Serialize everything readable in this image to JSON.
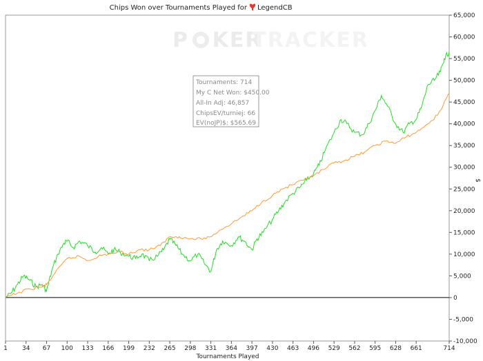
{
  "chart_data": {
    "type": "line",
    "title": "Chips Won over Tournaments Played for",
    "player": "LegendCB",
    "xlabel": "Tournaments Played",
    "ylabel": "$",
    "xlim": [
      1,
      714
    ],
    "ylim": [
      -10000,
      65000
    ],
    "x_ticks": [
      1,
      34,
      67,
      100,
      133,
      166,
      199,
      232,
      265,
      298,
      331,
      364,
      397,
      430,
      463,
      496,
      529,
      562,
      595,
      628,
      661,
      714
    ],
    "y_ticks": [
      -10000,
      -5000,
      0,
      5000,
      10000,
      15000,
      20000,
      25000,
      30000,
      35000,
      40000,
      45000,
      50000,
      55000,
      60000,
      65000
    ],
    "y_tick_labels": [
      "-10,000",
      "-5,000",
      "0",
      "5,000",
      "10,000",
      "15,000",
      "20,000",
      "25,000",
      "30,000",
      "35,000",
      "40,000",
      "45,000",
      "50,000",
      "55,000",
      "60,000",
      "65,000"
    ],
    "grid": false,
    "watermark": "POKERTRACKER",
    "series": [
      {
        "color": "#22dd22",
        "x": [
          1,
          10,
          20,
          30,
          40,
          50,
          60,
          67,
          75,
          85,
          95,
          100,
          110,
          120,
          133,
          145,
          155,
          166,
          175,
          185,
          199,
          210,
          220,
          232,
          245,
          255,
          265,
          275,
          285,
          298,
          310,
          320,
          331,
          340,
          350,
          364,
          375,
          385,
          397,
          405,
          415,
          430,
          440,
          450,
          463,
          475,
          485,
          496,
          505,
          515,
          529,
          540,
          550,
          562,
          575,
          585,
          595,
          605,
          615,
          628,
          640,
          650,
          661,
          670,
          680,
          690,
          700,
          706,
          714
        ],
        "values": [
          0,
          1000,
          3000,
          5000,
          4000,
          2500,
          3000,
          1500,
          6000,
          10000,
          12500,
          13000,
          11500,
          13000,
          12000,
          10500,
          11500,
          10000,
          11000,
          10500,
          9500,
          9000,
          10000,
          8500,
          9500,
          11000,
          13500,
          12000,
          10000,
          8500,
          10000,
          8000,
          6000,
          11000,
          13000,
          12000,
          14000,
          13000,
          11000,
          13500,
          15000,
          18000,
          20000,
          22000,
          24000,
          25500,
          27000,
          28500,
          30500,
          34000,
          38000,
          41000,
          40000,
          38000,
          37500,
          40000,
          43000,
          46500,
          44000,
          40000,
          38000,
          40000,
          41000,
          44000,
          49000,
          50000,
          52000,
          55000,
          56500
        ]
      },
      {
        "color": "#ff9933",
        "x": [
          1,
          20,
          40,
          60,
          67,
          80,
          100,
          120,
          133,
          150,
          166,
          185,
          199,
          215,
          232,
          250,
          265,
          280,
          298,
          315,
          331,
          345,
          364,
          380,
          397,
          413,
          430,
          446,
          463,
          480,
          496,
          513,
          529,
          545,
          562,
          578,
          595,
          612,
          628,
          645,
          661,
          680,
          695,
          705,
          714
        ],
        "values": [
          0,
          1000,
          2000,
          2500,
          3000,
          5500,
          9000,
          9500,
          8500,
          9500,
          10000,
          10500,
          10000,
          11000,
          11000,
          12000,
          14000,
          14000,
          13500,
          13500,
          14000,
          15500,
          17000,
          18500,
          20000,
          22000,
          23500,
          25000,
          26000,
          27000,
          28000,
          29500,
          31000,
          31500,
          32500,
          33500,
          35000,
          36000,
          35500,
          37000,
          38000,
          40000,
          42000,
          44500,
          47000
        ]
      }
    ]
  },
  "tooltip": {
    "lines": [
      "Tournaments: 714",
      "My C Net Won: $450.00",
      "All-In Adj: 46,857",
      "ChipsEV/turniej: 66",
      "EV(noJP)$: $565.69"
    ]
  }
}
